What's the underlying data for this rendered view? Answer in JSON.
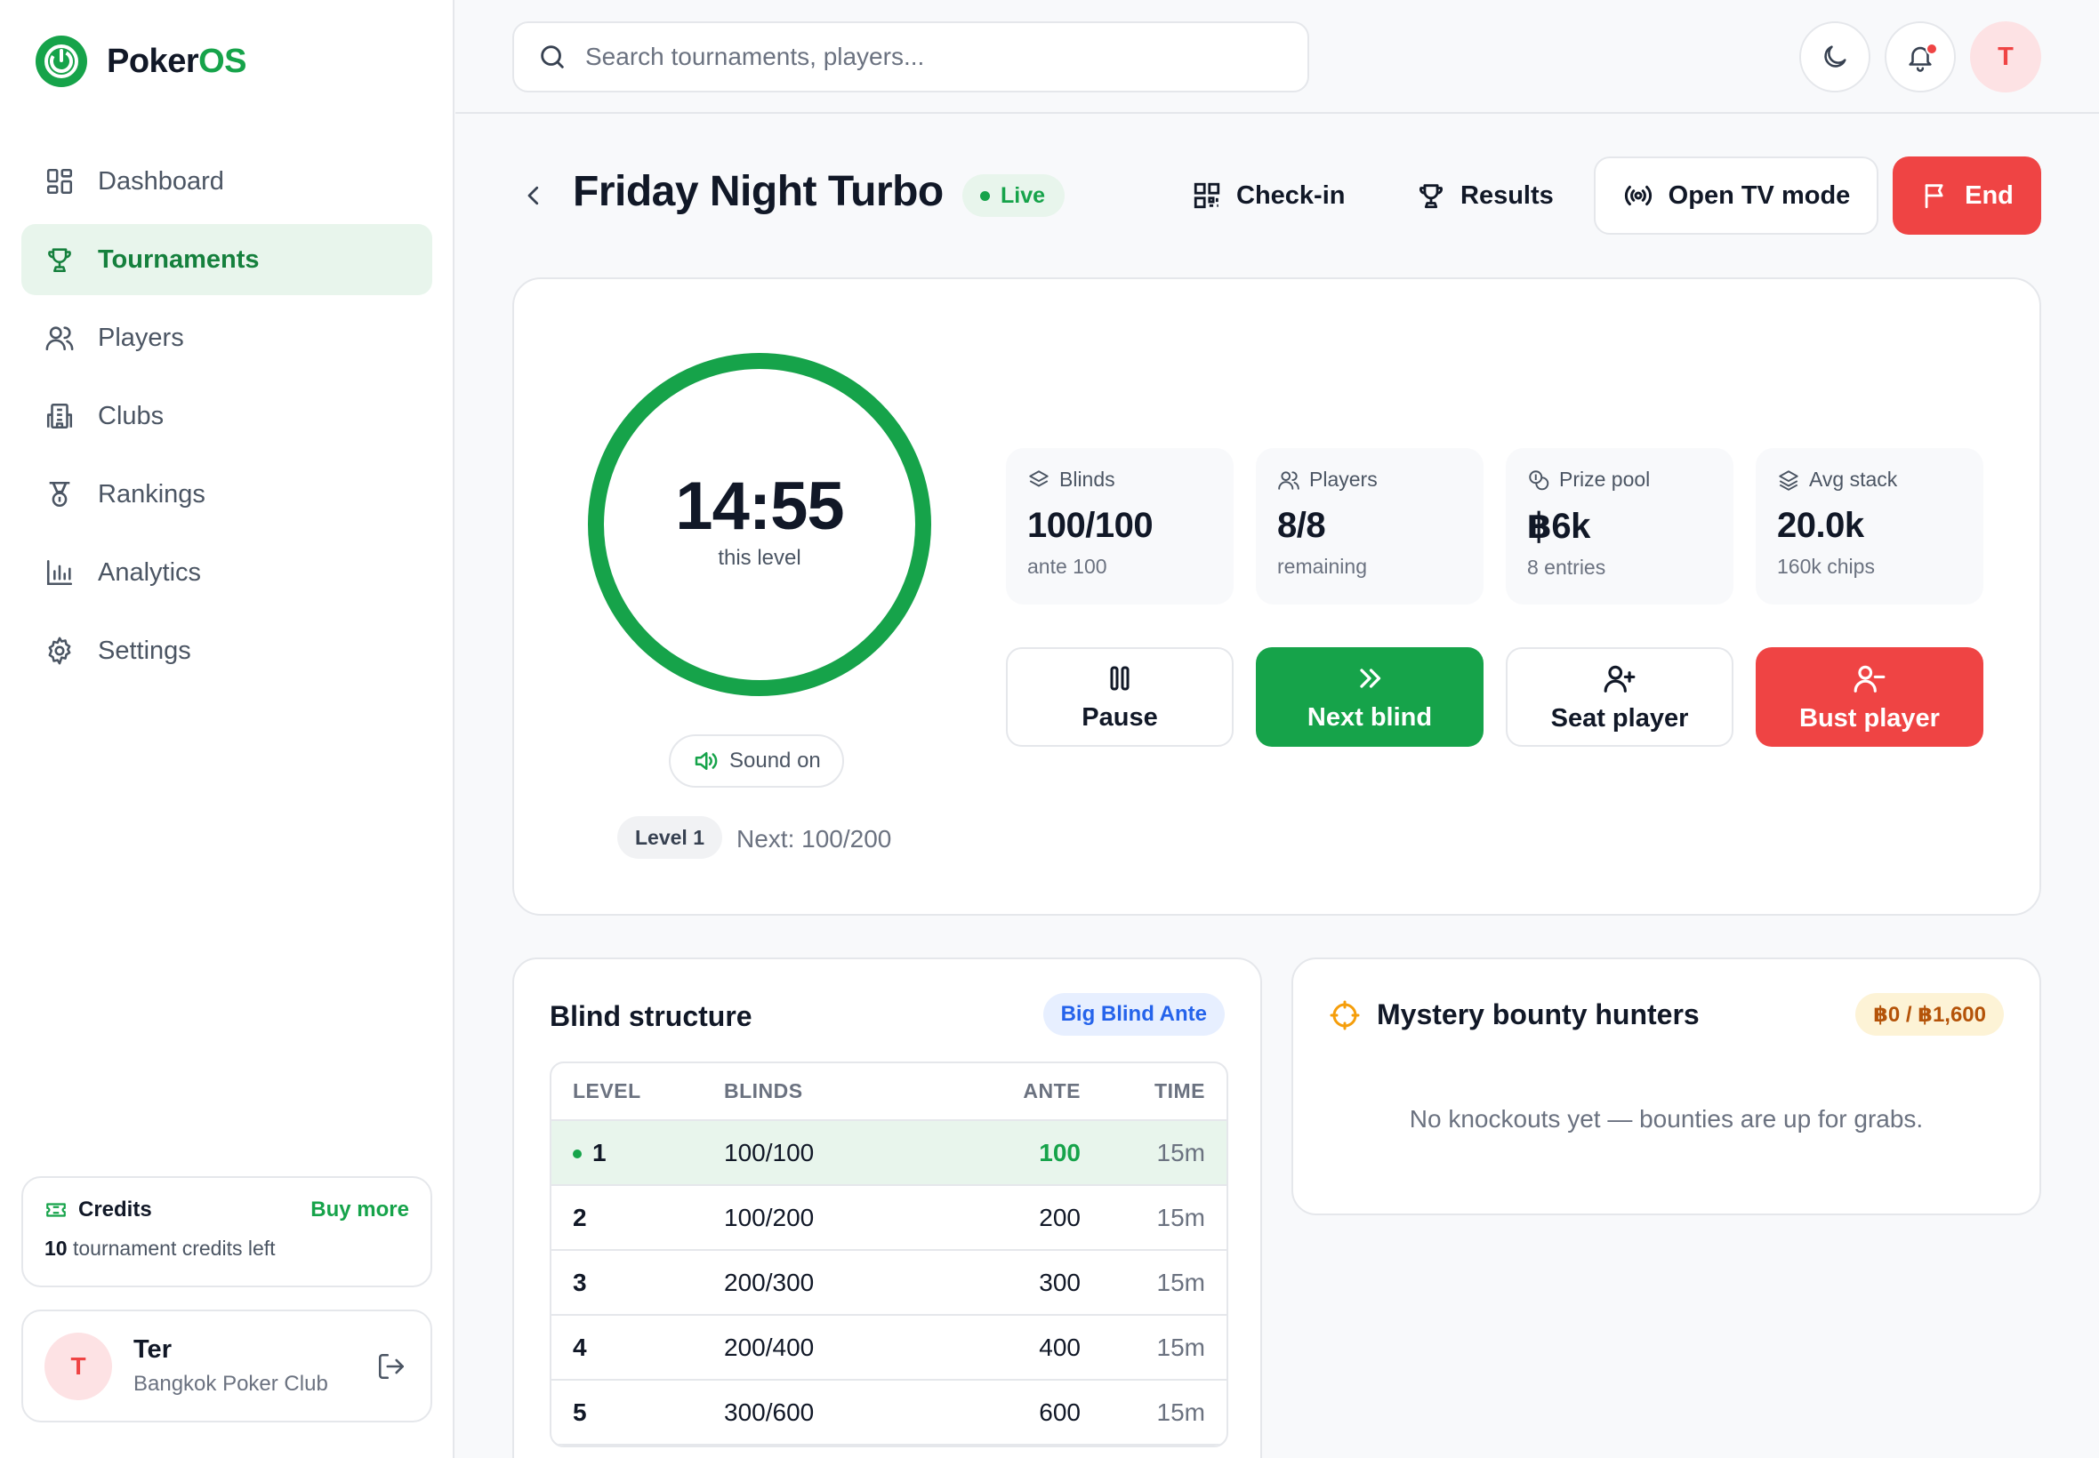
{
  "app": {
    "brand_first": "Poker",
    "brand_second": "OS"
  },
  "sidebar": {
    "items": [
      {
        "label": "Dashboard",
        "icon": "dashboard-icon"
      },
      {
        "label": "Tournaments",
        "icon": "trophy-icon",
        "active": true
      },
      {
        "label": "Players",
        "icon": "users-icon"
      },
      {
        "label": "Clubs",
        "icon": "building-icon"
      },
      {
        "label": "Rankings",
        "icon": "medal-icon"
      },
      {
        "label": "Analytics",
        "icon": "bar-chart-icon"
      },
      {
        "label": "Settings",
        "icon": "gear-icon"
      }
    ],
    "credits": {
      "title": "Credits",
      "buy_label": "Buy more",
      "count": "10",
      "suffix": "tournament credits left"
    },
    "user": {
      "initial": "T",
      "name": "Ter",
      "club": "Bangkok Poker Club"
    }
  },
  "topbar": {
    "search_placeholder": "Search tournaments, players...",
    "avatar_initial": "T"
  },
  "header": {
    "title": "Friday Night Turbo",
    "status": "Live",
    "checkin_label": "Check-in",
    "results_label": "Results",
    "tv_label": "Open TV mode",
    "end_label": "End"
  },
  "timer": {
    "time": "14:55",
    "caption": "this level",
    "progress": 1.0,
    "sound_label": "Sound on",
    "level_label": "Level 1",
    "next_label": "Next: 100/200"
  },
  "stats": [
    {
      "label": "Blinds",
      "value": "100/100",
      "sub": "ante 100",
      "icon": "layers-icon"
    },
    {
      "label": "Players",
      "value": "8/8",
      "sub": "remaining",
      "icon": "users-icon"
    },
    {
      "label": "Prize pool",
      "value": "฿6k",
      "sub": "8 entries",
      "icon": "coins-icon"
    },
    {
      "label": "Avg stack",
      "value": "20.0k",
      "sub": "160k chips",
      "icon": "layers-icon"
    }
  ],
  "actions": {
    "pause": "Pause",
    "next_blind": "Next blind",
    "seat_player": "Seat player",
    "bust_player": "Bust player"
  },
  "blind_structure": {
    "title": "Blind structure",
    "tag": "Big Blind Ante",
    "columns": [
      "LEVEL",
      "BLINDS",
      "ANTE",
      "TIME"
    ],
    "rows": [
      {
        "level": "1",
        "blinds": "100/100",
        "ante": "100",
        "time": "15m",
        "current": true
      },
      {
        "level": "2",
        "blinds": "100/200",
        "ante": "200",
        "time": "15m"
      },
      {
        "level": "3",
        "blinds": "200/300",
        "ante": "300",
        "time": "15m"
      },
      {
        "level": "4",
        "blinds": "200/400",
        "ante": "400",
        "time": "15m"
      },
      {
        "level": "5",
        "blinds": "300/600",
        "ante": "600",
        "time": "15m"
      }
    ]
  },
  "bounty": {
    "title": "Mystery bounty hunters",
    "tag": "฿0 / ฿1,600",
    "empty": "No knockouts yet — bounties are up for grabs."
  },
  "colors": {
    "brand_green": "#16a34a",
    "danger_red": "#ef4444",
    "active_bg": "#e8f5ec"
  }
}
